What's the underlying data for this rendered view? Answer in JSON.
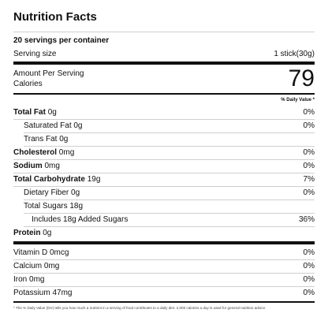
{
  "title": "Nutrition Facts",
  "servings": "20 servings per container",
  "serving_size": {
    "label": "Serving size",
    "value": "1 stick(30g)"
  },
  "amount_per_serving": "Amount Per Serving",
  "calories": {
    "label": "Calories",
    "value": "79"
  },
  "dv_header": "% Daily Value *",
  "nutrients": [
    {
      "name": "Total Fat",
      "amount": "0g",
      "dv": "0%"
    },
    {
      "name": "Saturated Fat",
      "amount": "0g",
      "dv": "0%"
    },
    {
      "name": "Trans Fat",
      "amount": "0g"
    },
    {
      "name": "Cholesterol",
      "amount": "0mg",
      "dv": "0%"
    },
    {
      "name": "Sodium",
      "amount": "0mg",
      "dv": "0%"
    },
    {
      "name": "Total Carbohydrate",
      "amount": "19g",
      "dv": "7%"
    },
    {
      "name": "Dietary Fiber",
      "amount": "0g",
      "dv": "0%"
    },
    {
      "name": "Total Sugars",
      "amount": "18g"
    },
    {
      "name": "Includes 18g Added Sugars",
      "dv": "36%"
    },
    {
      "name": "Protein",
      "amount": "0g"
    }
  ],
  "vitamins": [
    {
      "name": "Vitamin D",
      "amount": "0mcg",
      "dv": "0%"
    },
    {
      "name": "Calcium",
      "amount": "0mg",
      "dv": "0%"
    },
    {
      "name": "Iron",
      "amount": "0mg",
      "dv": "0%"
    },
    {
      "name": "Potassium",
      "amount": "47mg",
      "dv": "0%"
    }
  ],
  "footnote": "* The % Daily Value (DV) tells you how much a nutrient in a serving of food contributes to a daily diet. 2,000 calories a day is used for general nutrition advice."
}
